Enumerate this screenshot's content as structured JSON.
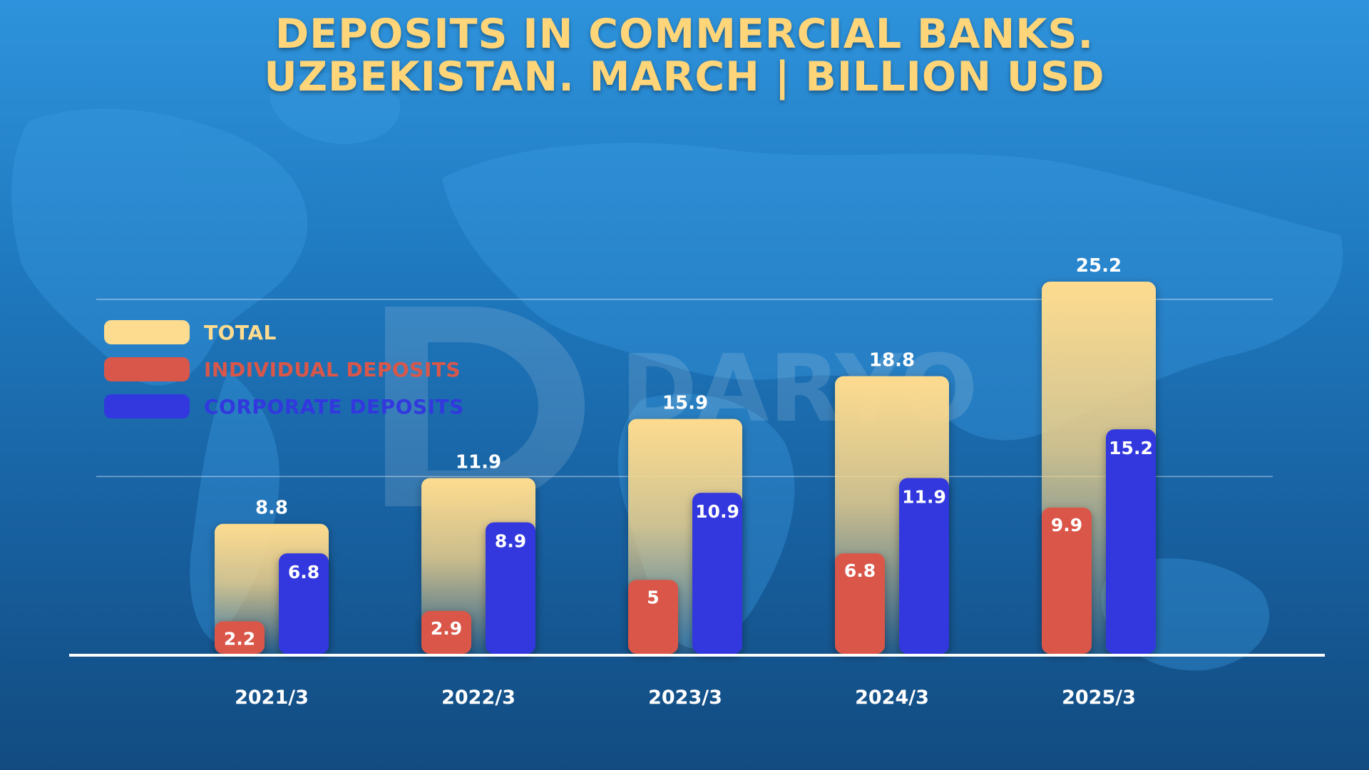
{
  "title": {
    "line1": "DEPOSITS IN COMMERCIAL BANKS.",
    "line2": "UZBEKISTAN. MARCH | BILLION USD"
  },
  "watermark": "DARYO",
  "legend": [
    {
      "label": "TOTAL",
      "color": "#fddb8f",
      "text_color": "#fddb8f"
    },
    {
      "label": "INDIVIDUAL DEPOSITS",
      "color": "#d9574a",
      "text_color": "#d9574a"
    },
    {
      "label": "CORPORATE DEPOSITS",
      "color": "#3238de",
      "text_color": "#3238de"
    }
  ],
  "chart_data": {
    "type": "bar",
    "title": "DEPOSITS IN COMMERCIAL BANKS. UZBEKISTAN. MARCH | BILLION USD",
    "categories": [
      "2021/3",
      "2022/3",
      "2023/3",
      "2024/3",
      "2025/3"
    ],
    "series": [
      {
        "name": "TOTAL",
        "values": [
          8.8,
          11.9,
          15.9,
          18.8,
          25.2
        ],
        "color": "#fddb8f"
      },
      {
        "name": "INDIVIDUAL DEPOSITS",
        "values": [
          2.2,
          2.9,
          5,
          6.8,
          9.9
        ],
        "color": "#d9574a"
      },
      {
        "name": "CORPORATE DEPOSITS",
        "values": [
          6.8,
          8.9,
          10.9,
          11.9,
          15.2
        ],
        "color": "#3238de"
      }
    ],
    "value_labels": {
      "total": [
        "8.8",
        "11.9",
        "15.9",
        "18.8",
        "25.2"
      ],
      "individual": [
        "2.2",
        "2.9",
        "5",
        "6.8",
        "9.9"
      ],
      "corporate": [
        "6.8",
        "8.9",
        "10.9",
        "11.9",
        "15.2"
      ]
    },
    "ylim": [
      0,
      25.2
    ],
    "gridlines": [
      12,
      24
    ],
    "grid": true,
    "legend_position": "left"
  }
}
